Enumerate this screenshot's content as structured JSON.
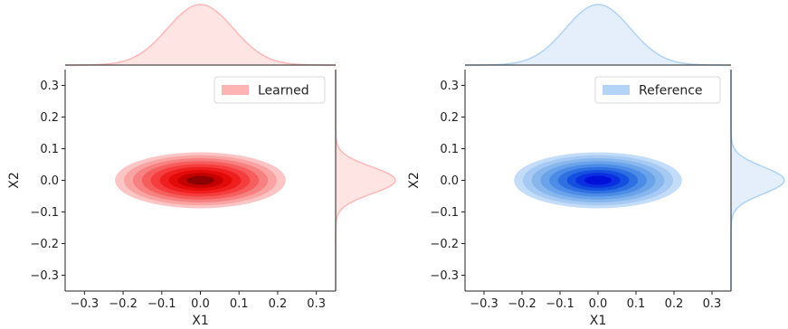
{
  "chart_data": [
    {
      "type": "joint-kde",
      "name": "Learned",
      "color": "#ff0000",
      "light_color": "#ffb3b3",
      "marginal_fill": "#ffe4e4",
      "marginal_line": "#ffb8b8",
      "legend": "Learned",
      "legend_position": "top-right",
      "xlabel": "X1",
      "ylabel": "X2",
      "xlim": [
        -0.35,
        0.35
      ],
      "ylim": [
        -0.35,
        0.35
      ],
      "xticks": [
        -0.3,
        -0.2,
        -0.1,
        0.0,
        0.1,
        0.2,
        0.3
      ],
      "yticks": [
        -0.3,
        -0.2,
        -0.1,
        0.0,
        0.1,
        0.2,
        0.3
      ],
      "xtick_labels": [
        "−0.3",
        "−0.2",
        "−0.1",
        "0.0",
        "0.1",
        "0.2",
        "0.3"
      ],
      "ytick_labels": [
        "−0.3",
        "−0.2",
        "−0.1",
        "0.0",
        "0.1",
        "0.2",
        "0.3"
      ],
      "center": [
        0.0,
        0.0
      ],
      "sigma_x": 0.085,
      "sigma_y": 0.034,
      "contour_levels": 9,
      "contour_palette": [
        "#fcc5c5",
        "#f9a3a3",
        "#f78080",
        "#f65d5d",
        "#f53d3d",
        "#f01f1f",
        "#e30a0a",
        "#c40000",
        "#8d0000"
      ],
      "grid": false
    },
    {
      "type": "joint-kde",
      "name": "Reference",
      "color": "#0000ff",
      "light_color": "#b3d4f7",
      "marginal_fill": "#e4effb",
      "marginal_line": "#b0d3f4",
      "legend": "Reference",
      "legend_position": "top-right",
      "xlabel": "X1",
      "ylabel": "X2",
      "xlim": [
        -0.35,
        0.35
      ],
      "ylim": [
        -0.35,
        0.35
      ],
      "xticks": [
        -0.3,
        -0.2,
        -0.1,
        0.0,
        0.1,
        0.2,
        0.3
      ],
      "yticks": [
        -0.3,
        -0.2,
        -0.1,
        0.0,
        0.1,
        0.2,
        0.3
      ],
      "xtick_labels": [
        "−0.3",
        "−0.2",
        "−0.1",
        "0.0",
        "0.1",
        "0.2",
        "0.3"
      ],
      "ytick_labels": [
        "−0.3",
        "−0.2",
        "−0.1",
        "0.0",
        "0.1",
        "0.2",
        "0.3"
      ],
      "center": [
        0.0,
        0.0
      ],
      "sigma_x": 0.085,
      "sigma_y": 0.034,
      "contour_levels": 9,
      "contour_palette": [
        "#c3dcf7",
        "#a6caf3",
        "#88b7ee",
        "#6aa3ea",
        "#4c8ce6",
        "#2e6fe2",
        "#1450e0",
        "#0a2fe0",
        "#0010d8"
      ],
      "grid": false
    }
  ]
}
